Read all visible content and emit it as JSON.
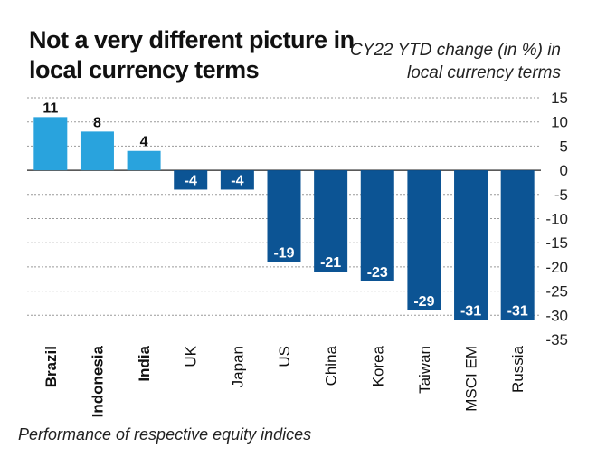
{
  "chart_data": {
    "type": "bar",
    "title": "Not a very different picture in local currency terms",
    "subtitle": "CY22 YTD change (in %) in local currency terms",
    "footnote": "Performance of respective equity indices",
    "categories": [
      "Brazil",
      "Indonesia",
      "India",
      "UK",
      "Japan",
      "US",
      "China",
      "Korea",
      "Taiwan",
      "MSCI EM",
      "Russia"
    ],
    "values": [
      11,
      8,
      4,
      -4,
      -4,
      -19,
      -21,
      -23,
      -29,
      -31,
      -31
    ],
    "data_labels": [
      "11",
      "8",
      "4",
      "-4",
      "-4",
      "-19",
      "-21",
      "-23",
      "-29",
      "-31",
      "-31"
    ],
    "bold_categories": [
      "Brazil",
      "Indonesia",
      "India"
    ],
    "ylim": [
      -35,
      15
    ],
    "y_ticks": [
      15,
      10,
      5,
      0,
      -5,
      -10,
      -15,
      -20,
      -25,
      -30,
      -35
    ],
    "y_tick_labels": [
      "15",
      "10",
      "5",
      "0",
      "-5",
      "-10",
      "-15",
      "-20",
      "-25",
      "-30",
      "-35"
    ],
    "y_axis_side": "right",
    "grid": true,
    "colors": {
      "positive": "#29a3dd",
      "negative": "#0c5494",
      "grid": "#9a9a9a",
      "zero_line": "#222222",
      "label_dark": "#111111",
      "label_light": "#ffffff"
    }
  }
}
